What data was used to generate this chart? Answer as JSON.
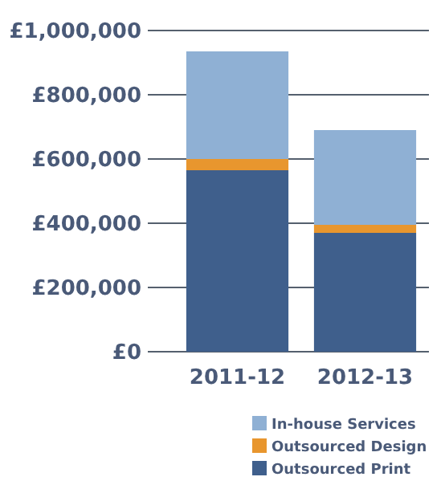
{
  "chart_data": {
    "type": "bar",
    "stacked": true,
    "categories": [
      "2011-12",
      "2012-13"
    ],
    "series": [
      {
        "name": "Outsourced Print",
        "color": "#3f5f8c",
        "values": [
          565000,
          370000
        ]
      },
      {
        "name": "Outsourced Design",
        "color": "#e8962e",
        "values": [
          35000,
          25000
        ]
      },
      {
        "name": "In-house Services",
        "color": "#8fb0d4",
        "values": [
          335000,
          295000
        ]
      }
    ],
    "ylim": [
      0,
      1000000
    ],
    "yticks": [
      {
        "value": 0,
        "label": "£0"
      },
      {
        "value": 200000,
        "label": "£200,000"
      },
      {
        "value": 400000,
        "label": "£400,000"
      },
      {
        "value": 600000,
        "label": "£600,000"
      },
      {
        "value": 800000,
        "label": "£800,000"
      },
      {
        "value": 1000000,
        "label": "£1,000,000"
      }
    ],
    "grid": "y",
    "legend": "bottom right"
  }
}
